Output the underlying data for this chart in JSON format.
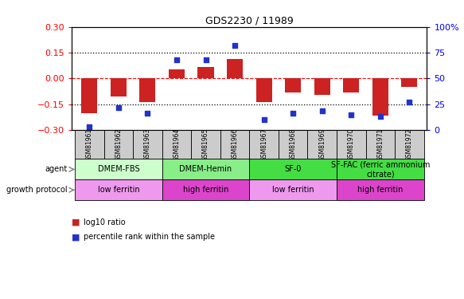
{
  "title": "GDS2230 / 11989",
  "samples": [
    "GSM81961",
    "GSM81962",
    "GSM81963",
    "GSM81964",
    "GSM81965",
    "GSM81966",
    "GSM81967",
    "GSM81968",
    "GSM81969",
    "GSM81970",
    "GSM81971",
    "GSM81972"
  ],
  "log10_ratio": [
    -0.2,
    -0.105,
    -0.135,
    0.052,
    0.065,
    0.115,
    -0.135,
    -0.08,
    -0.095,
    -0.082,
    -0.215,
    -0.05
  ],
  "percentile_rank": [
    3,
    22,
    16,
    68,
    68,
    82,
    10,
    16,
    19,
    15,
    13,
    27
  ],
  "ylim_left": [
    -0.3,
    0.3
  ],
  "ylim_right": [
    0,
    100
  ],
  "left_ticks": [
    -0.3,
    -0.15,
    0,
    0.15,
    0.3
  ],
  "right_ticks": [
    0,
    25,
    50,
    75,
    100
  ],
  "hlines_dotted": [
    0.15,
    -0.15
  ],
  "hline_dashed": 0,
  "bar_color": "#cc2222",
  "dot_color": "#2233cc",
  "agent_groups": [
    {
      "label": "DMEM-FBS",
      "start": 0,
      "end": 3,
      "color": "#ccffcc"
    },
    {
      "label": "DMEM-Hemin",
      "start": 3,
      "end": 6,
      "color": "#88ee88"
    },
    {
      "label": "SF-0",
      "start": 6,
      "end": 9,
      "color": "#44dd44"
    },
    {
      "label": "SF-FAC (ferric ammonium\ncitrate)",
      "start": 9,
      "end": 12,
      "color": "#44dd44"
    }
  ],
  "growth_groups": [
    {
      "label": "low ferritin",
      "start": 0,
      "end": 3,
      "color": "#ee99ee"
    },
    {
      "label": "high ferritin",
      "start": 3,
      "end": 6,
      "color": "#dd44cc"
    },
    {
      "label": "low ferritin",
      "start": 6,
      "end": 9,
      "color": "#ee99ee"
    },
    {
      "label": "high ferritin",
      "start": 9,
      "end": 12,
      "color": "#dd44cc"
    }
  ],
  "bar_width": 0.55,
  "dot_size": 20,
  "title_color": "black",
  "left_tick_color": "red",
  "right_tick_color": "blue",
  "sample_bg_color": "#cccccc",
  "sample_fontsize": 5.5,
  "agent_fontsize": 7,
  "growth_fontsize": 7,
  "label_fontsize": 7,
  "legend_bar_label": "log10 ratio",
  "legend_dot_label": "percentile rank within the sample"
}
